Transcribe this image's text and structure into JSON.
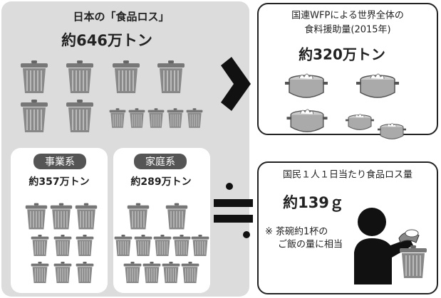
{
  "japan_food_loss": {
    "title": "日本の「食品ロス」",
    "total": "約646万トン",
    "business": {
      "label": "事業系",
      "amount": "約357万トン"
    },
    "household": {
      "label": "家庭系",
      "amount": "約289万トン"
    }
  },
  "wfp_aid": {
    "title_lines": [
      "国連WFPによる世界全体の",
      "食料援助量(2015年)"
    ],
    "amount": "約320万トン"
  },
  "per_capita": {
    "title": "国民１人１日当たり食品ロス量",
    "amount": "約139ｇ",
    "note_lines": [
      "※ 茶碗約1杯の",
      "ご飯の量に相当"
    ]
  }
}
